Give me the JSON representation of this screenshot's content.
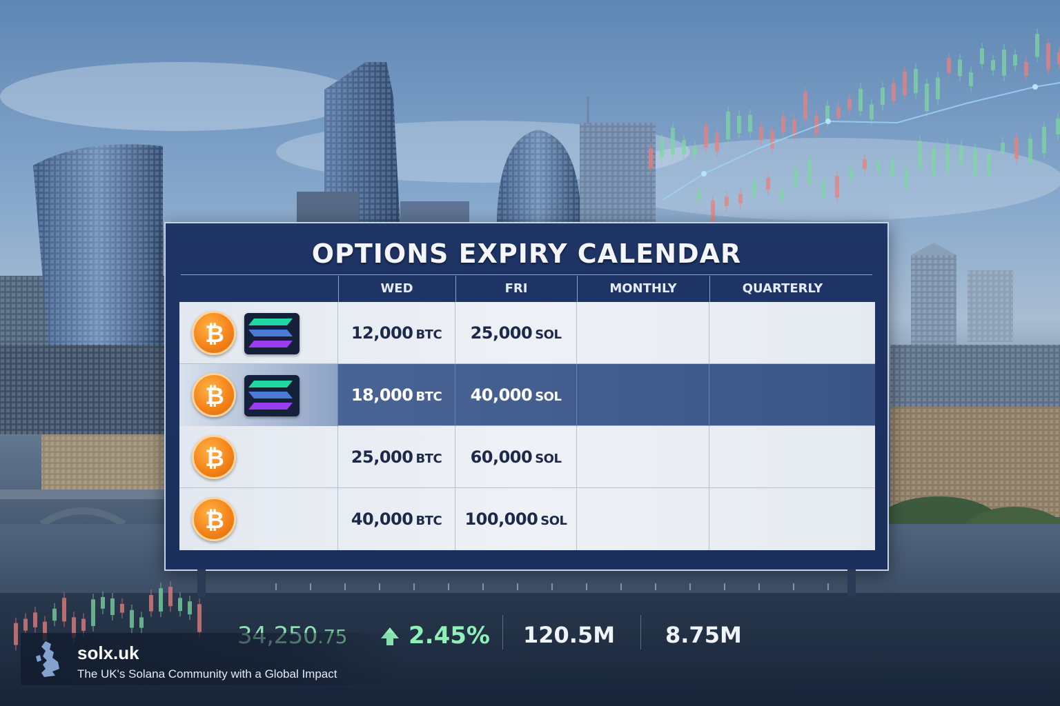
{
  "calendar": {
    "title": "OPTIONS EXPIRY CALENDAR",
    "columns": [
      "WED",
      "FRI",
      "MONTHLY",
      "QUARTERLY"
    ],
    "rows": [
      {
        "coins": [
          "bitcoin-icon",
          "solana-icon"
        ],
        "wed_value": "12,000",
        "wed_unit": "BTC",
        "fri_value": "25,000",
        "fri_unit": "SOL",
        "monthly": "",
        "quarterly": ""
      },
      {
        "coins": [
          "bitcoin-icon",
          "solana-icon"
        ],
        "wed_value": "18,000",
        "wed_unit": "BTC",
        "fri_value": "40,000",
        "fri_unit": "SOL",
        "monthly": "",
        "quarterly": ""
      },
      {
        "coins": [
          "bitcoin-icon"
        ],
        "wed_value": "25,000",
        "wed_unit": "BTC",
        "fri_value": "60,000",
        "fri_unit": "SOL",
        "monthly": "",
        "quarterly": ""
      },
      {
        "coins": [
          "bitcoin-icon"
        ],
        "wed_value": "40,000",
        "wed_unit": "BTC",
        "fri_value": "100,000",
        "fri_unit": "SOL",
        "monthly": "",
        "quarterly": ""
      }
    ]
  },
  "ticker": {
    "price_main": "34,250",
    "price_decimal": ".75",
    "change": "2.45%",
    "change_direction": "up-arrow-icon",
    "volume_1": "120.5M",
    "volume_2": "8.75M"
  },
  "brand": {
    "name": "solx.uk",
    "tagline": "The UK's Solana Community with a Global Impact",
    "icon": "uk-map-icon"
  },
  "colors": {
    "board": "#1f3566",
    "bitcoin": "#f4841a",
    "positive": "#8ff0b8",
    "candle_up": "#7fd6a4",
    "candle_down": "#e8827e"
  }
}
